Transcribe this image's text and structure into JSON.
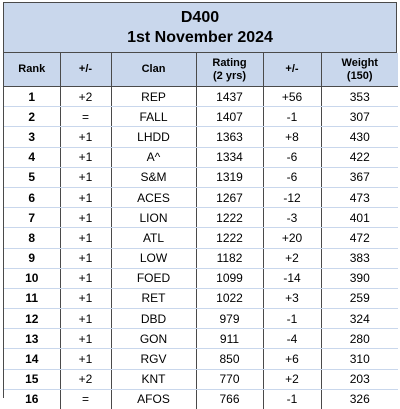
{
  "title": "D400",
  "subtitle": "1st November 2024",
  "headers": {
    "rank": "Rank",
    "change1": "+/-",
    "clan": "Clan",
    "rating_line1": "Rating",
    "rating_line2": "(2 yrs)",
    "change2": "+/-",
    "weight_line1": "Weight",
    "weight_line2": "(150)"
  },
  "rows": [
    {
      "rank": "1",
      "change": "+2",
      "clan": "REP",
      "rating": "1437",
      "rating_change": "+56",
      "weight": "353"
    },
    {
      "rank": "2",
      "change": "=",
      "clan": "FALL",
      "rating": "1407",
      "rating_change": "-1",
      "weight": "307"
    },
    {
      "rank": "3",
      "change": "+1",
      "clan": "LHDD",
      "rating": "1363",
      "rating_change": "+8",
      "weight": "430"
    },
    {
      "rank": "4",
      "change": "+1",
      "clan": "A^",
      "rating": "1334",
      "rating_change": "-6",
      "weight": "422"
    },
    {
      "rank": "5",
      "change": "+1",
      "clan": "S&M",
      "rating": "1319",
      "rating_change": "-6",
      "weight": "367"
    },
    {
      "rank": "6",
      "change": "+1",
      "clan": "ACES",
      "rating": "1267",
      "rating_change": "-12",
      "weight": "473"
    },
    {
      "rank": "7",
      "change": "+1",
      "clan": "LION",
      "rating": "1222",
      "rating_change": "-3",
      "weight": "401"
    },
    {
      "rank": "8",
      "change": "+1",
      "clan": "ATL",
      "rating": "1222",
      "rating_change": "+20",
      "weight": "472"
    },
    {
      "rank": "9",
      "change": "+1",
      "clan": "LOW",
      "rating": "1182",
      "rating_change": "+2",
      "weight": "383"
    },
    {
      "rank": "10",
      "change": "+1",
      "clan": "FOED",
      "rating": "1099",
      "rating_change": "-14",
      "weight": "390"
    },
    {
      "rank": "11",
      "change": "+1",
      "clan": "RET",
      "rating": "1022",
      "rating_change": "+3",
      "weight": "259"
    },
    {
      "rank": "12",
      "change": "+1",
      "clan": "DBD",
      "rating": "979",
      "rating_change": "-1",
      "weight": "324"
    },
    {
      "rank": "13",
      "change": "+1",
      "clan": "GON",
      "rating": "911",
      "rating_change": "-4",
      "weight": "280"
    },
    {
      "rank": "14",
      "change": "+1",
      "clan": "RGV",
      "rating": "850",
      "rating_change": "+6",
      "weight": "310"
    },
    {
      "rank": "15",
      "change": "+2",
      "clan": "KNT",
      "rating": "770",
      "rating_change": "+2",
      "weight": "203"
    },
    {
      "rank": "16",
      "change": "=",
      "clan": "AFOS",
      "rating": "766",
      "rating_change": "-1",
      "weight": "326"
    }
  ],
  "colors": {
    "header_bg": "#c9d7ec",
    "border": "#4a4a4a"
  }
}
